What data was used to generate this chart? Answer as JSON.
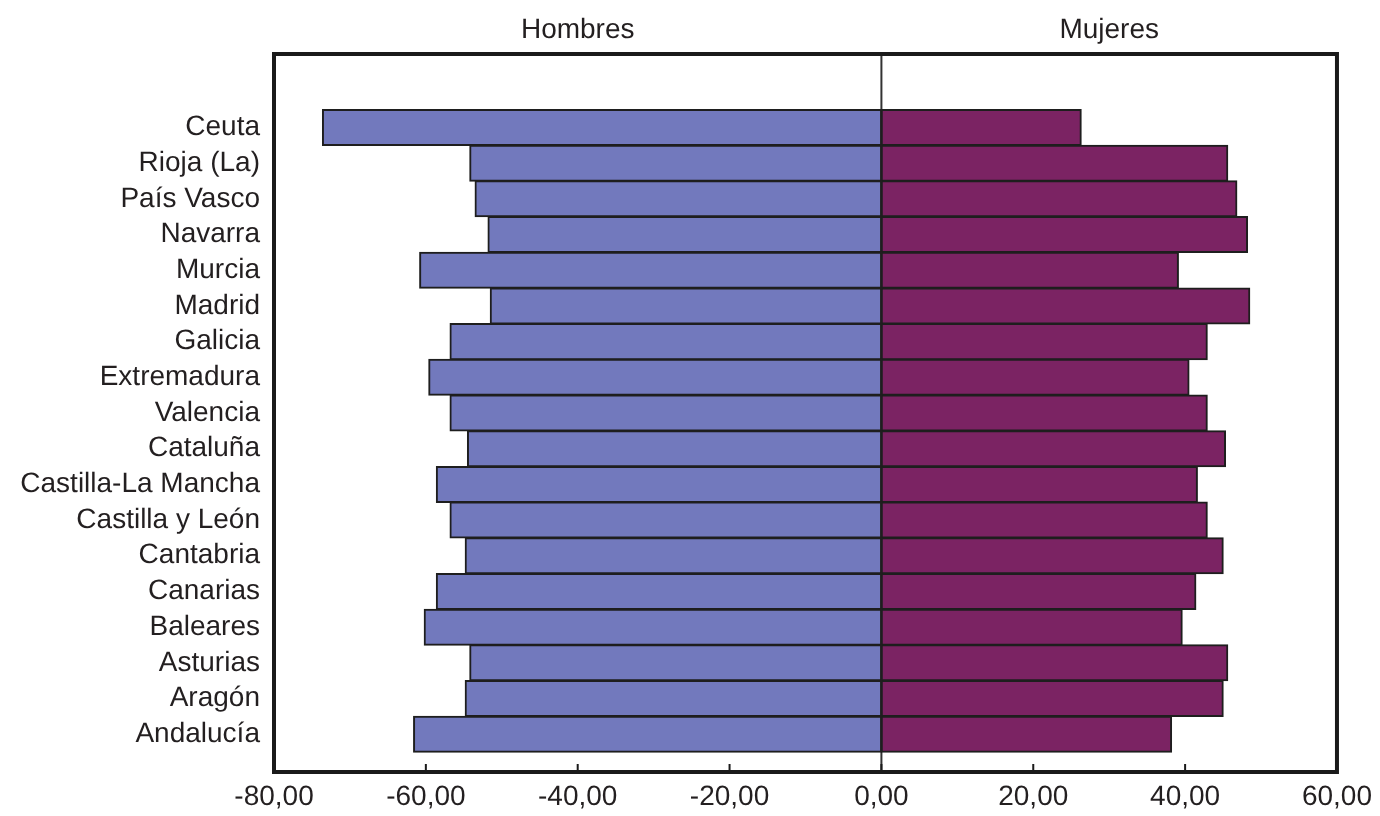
{
  "chart_data": {
    "type": "bar",
    "orientation": "horizontal",
    "stacked": true,
    "categories": [
      "Ceuta",
      "Rioja (La)",
      "País Vasco",
      "Navarra",
      "Murcia",
      "Madrid",
      "Galicia",
      "Extremadura",
      "Valencia",
      "Cataluña",
      "Castilla-La Mancha",
      "Castilla y León",
      "Cantabria",
      "Canarias",
      "Baleares",
      "Asturias",
      "Aragón",
      "Andalucía"
    ],
    "series": [
      {
        "name": "Hombres",
        "color": "#7279bd",
        "values": [
          -73.6,
          -54.2,
          -53.5,
          -51.8,
          -60.8,
          -51.5,
          -56.8,
          -59.6,
          -56.8,
          -54.5,
          -58.6,
          -56.8,
          -54.8,
          -58.6,
          -60.2,
          -54.2,
          -54.8,
          -61.6
        ]
      },
      {
        "name": "Mujeres",
        "color": "#7b2363",
        "values": [
          26.3,
          45.6,
          46.8,
          48.2,
          39.1,
          48.5,
          42.9,
          40.5,
          42.9,
          45.3,
          41.6,
          42.9,
          45.0,
          41.4,
          39.6,
          45.6,
          45.0,
          38.2
        ]
      }
    ],
    "xlim": [
      -80,
      60
    ],
    "xticks": [
      {
        "value": -80,
        "label": "-80,00"
      },
      {
        "value": -60,
        "label": "-60,00"
      },
      {
        "value": -40,
        "label": "-40,00"
      },
      {
        "value": -20,
        "label": "-20,00"
      },
      {
        "value": 0,
        "label": "0,00"
      },
      {
        "value": 20,
        "label": "20,00"
      },
      {
        "value": 40,
        "label": "40,00"
      },
      {
        "value": 60,
        "label": "60,00"
      }
    ]
  }
}
